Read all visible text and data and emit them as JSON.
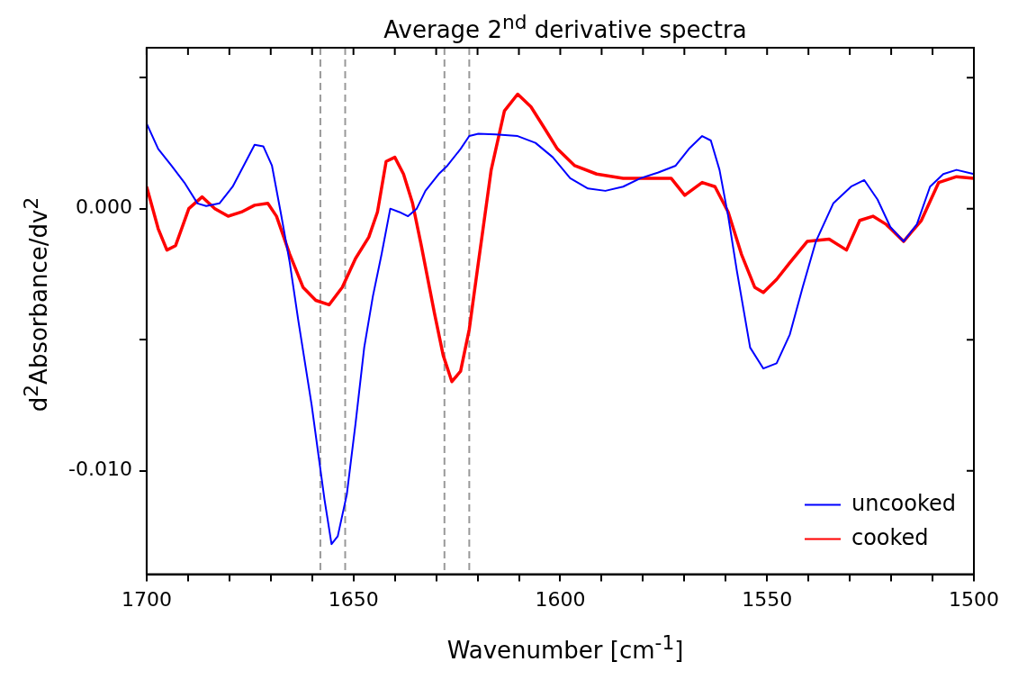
{
  "chart_data": {
    "type": "line",
    "title": "Average 2$^{nd}$ derivative spectra",
    "xlabel": "Wavenumber [cm$^{-1}$]",
    "ylabel": "d$^{2}$Absorbance/dv$^{2}$",
    "xlim": [
      1700,
      1500
    ],
    "xticks": [
      1700,
      {
        "value": 1690,
        "label": null
      },
      {
        "value": 1680,
        "label": null
      },
      {
        "value": 1670,
        "label": null
      },
      {
        "value": 1660,
        "label": null
      },
      1650,
      {
        "value": 1640,
        "label": null
      },
      {
        "value": 1630,
        "label": null
      },
      {
        "value": 1620,
        "label": null
      },
      {
        "value": 1610,
        "label": null
      },
      1600,
      {
        "value": 1590,
        "label": null
      },
      {
        "value": 1580,
        "label": null
      },
      {
        "value": 1570,
        "label": null
      },
      {
        "value": 1560,
        "label": null
      },
      1550,
      {
        "value": 1540,
        "label": null
      },
      {
        "value": 1530,
        "label": null
      },
      {
        "value": 1520,
        "label": null
      },
      {
        "value": 1510,
        "label": null
      },
      1500
    ],
    "ylim": [
      -0.01395,
      0.00614
    ],
    "yticks": [
      {
        "value": 0.005,
        "label": null
      },
      {
        "value": 0,
        "label": "0.000"
      },
      {
        "value": -0.005,
        "label": null
      },
      {
        "value": -0.01,
        "label": "-0.010"
      }
    ],
    "grid": false,
    "legend": "bottom right",
    "marker": "none",
    "line_style": "solid",
    "ref_lines": [
      {
        "axis": "x",
        "value": 1658,
        "label": null,
        "color": "#999999",
        "line_style": "dashed"
      },
      {
        "axis": "x",
        "value": 1652,
        "label": null,
        "color": "#999999",
        "line_style": "dashed"
      },
      {
        "axis": "x",
        "value": 1628,
        "label": null,
        "color": "#999999",
        "line_style": "dashed"
      },
      {
        "axis": "x",
        "value": 1622,
        "label": null,
        "color": "#999999",
        "line_style": "dashed"
      }
    ],
    "series": [
      {
        "name": "uncooked",
        "color": "#0000ff",
        "x": [
          1700,
          1697.2,
          1694,
          1690.9,
          1687.7,
          1685.6,
          1682.4,
          1679.2,
          1676,
          1673.9,
          1671.8,
          1669.7,
          1667.6,
          1665.4,
          1663.3,
          1660.1,
          1657,
          1655.3,
          1653.8,
          1651.6,
          1649.5,
          1647.4,
          1645.3,
          1643.2,
          1641.1,
          1638.9,
          1636.8,
          1634.7,
          1632.6,
          1629.4,
          1627.3,
          1624.1,
          1622,
          1619.8,
          1615.6,
          1610.3,
          1606,
          1601.8,
          1597.6,
          1593.3,
          1589.1,
          1584.8,
          1580.6,
          1576.3,
          1572.1,
          1568.9,
          1565.7,
          1563.6,
          1561.5,
          1559.4,
          1557.3,
          1554.1,
          1550.9,
          1547.7,
          1544.5,
          1541.4,
          1538.2,
          1534,
          1529.7,
          1526.5,
          1523.3,
          1520.2,
          1517,
          1513.8,
          1510.6,
          1507.4,
          1504.2,
          1500
        ],
        "values": [
          0.00325,
          0.00228,
          0.00164,
          0.001,
          0.0002,
          0.0001,
          0.0002,
          0.00084,
          0.0018,
          0.00244,
          0.00238,
          0.00164,
          -0.00013,
          -0.00206,
          -0.0043,
          -0.0075,
          -0.0111,
          -0.0128,
          -0.0125,
          -0.0109,
          -0.0082,
          -0.0053,
          -0.00334,
          -0.00174,
          0,
          -0.00013,
          -0.00029,
          0,
          0.00068,
          0.00132,
          0.00164,
          0.00228,
          0.00277,
          0.00286,
          0.00283,
          0.00277,
          0.00251,
          0.00196,
          0.00116,
          0.00077,
          0.00068,
          0.00084,
          0.00116,
          0.00138,
          0.00164,
          0.00228,
          0.00277,
          0.0026,
          0.00148,
          -0.00029,
          -0.00238,
          -0.0053,
          -0.0061,
          -0.0059,
          -0.0048,
          -0.003,
          -0.00125,
          0.0002,
          0.00084,
          0.00109,
          0.00035,
          -0.0007,
          -0.00125,
          -0.0006,
          0.00084,
          0.00132,
          0.00148,
          0.00132
        ]
      },
      {
        "name": "cooked",
        "color": "#ff0000",
        "x": [
          1700,
          1697.2,
          1695.1,
          1693,
          1689.8,
          1686.6,
          1683.5,
          1680.3,
          1677.1,
          1673.9,
          1670.7,
          1668.6,
          1665.4,
          1662.2,
          1659.1,
          1655.9,
          1652.7,
          1649.5,
          1646.3,
          1644.2,
          1642.1,
          1640,
          1637.9,
          1635.7,
          1633.6,
          1630.4,
          1628.3,
          1626.2,
          1624.1,
          1622,
          1619.8,
          1616.7,
          1613.5,
          1610.3,
          1607.1,
          1603.9,
          1600.7,
          1596.5,
          1591.2,
          1584.8,
          1578.5,
          1573.2,
          1569.9,
          1565.7,
          1562.6,
          1559.4,
          1556.2,
          1553,
          1550.9,
          1547.7,
          1544.5,
          1540.3,
          1535,
          1530.8,
          1527.6,
          1524.4,
          1521.2,
          1517,
          1512.7,
          1508.5,
          1504.2,
          1500
        ],
        "values": [
          0.00084,
          -0.00077,
          -0.00158,
          -0.00141,
          0,
          0.00045,
          0,
          -0.00029,
          -0.00013,
          0.00013,
          0.0002,
          -0.00029,
          -0.00174,
          -0.003,
          -0.0035,
          -0.00367,
          -0.003,
          -0.0019,
          -0.00109,
          -0.00013,
          0.0018,
          0.00196,
          0.00132,
          0.0002,
          -0.00141,
          -0.004,
          -0.0056,
          -0.0066,
          -0.0062,
          -0.0046,
          -0.00206,
          0.00148,
          0.00373,
          0.00437,
          0.00389,
          0.00309,
          0.00228,
          0.00164,
          0.00132,
          0.00116,
          0.00116,
          0.00116,
          0.00051,
          0.001,
          0.00084,
          -0.00013,
          -0.00174,
          -0.003,
          -0.0032,
          -0.0027,
          -0.00206,
          -0.00125,
          -0.00116,
          -0.00158,
          -0.00045,
          -0.00029,
          -0.0006,
          -0.00125,
          -0.00045,
          0.001,
          0.00122,
          0.00116
        ]
      }
    ]
  }
}
